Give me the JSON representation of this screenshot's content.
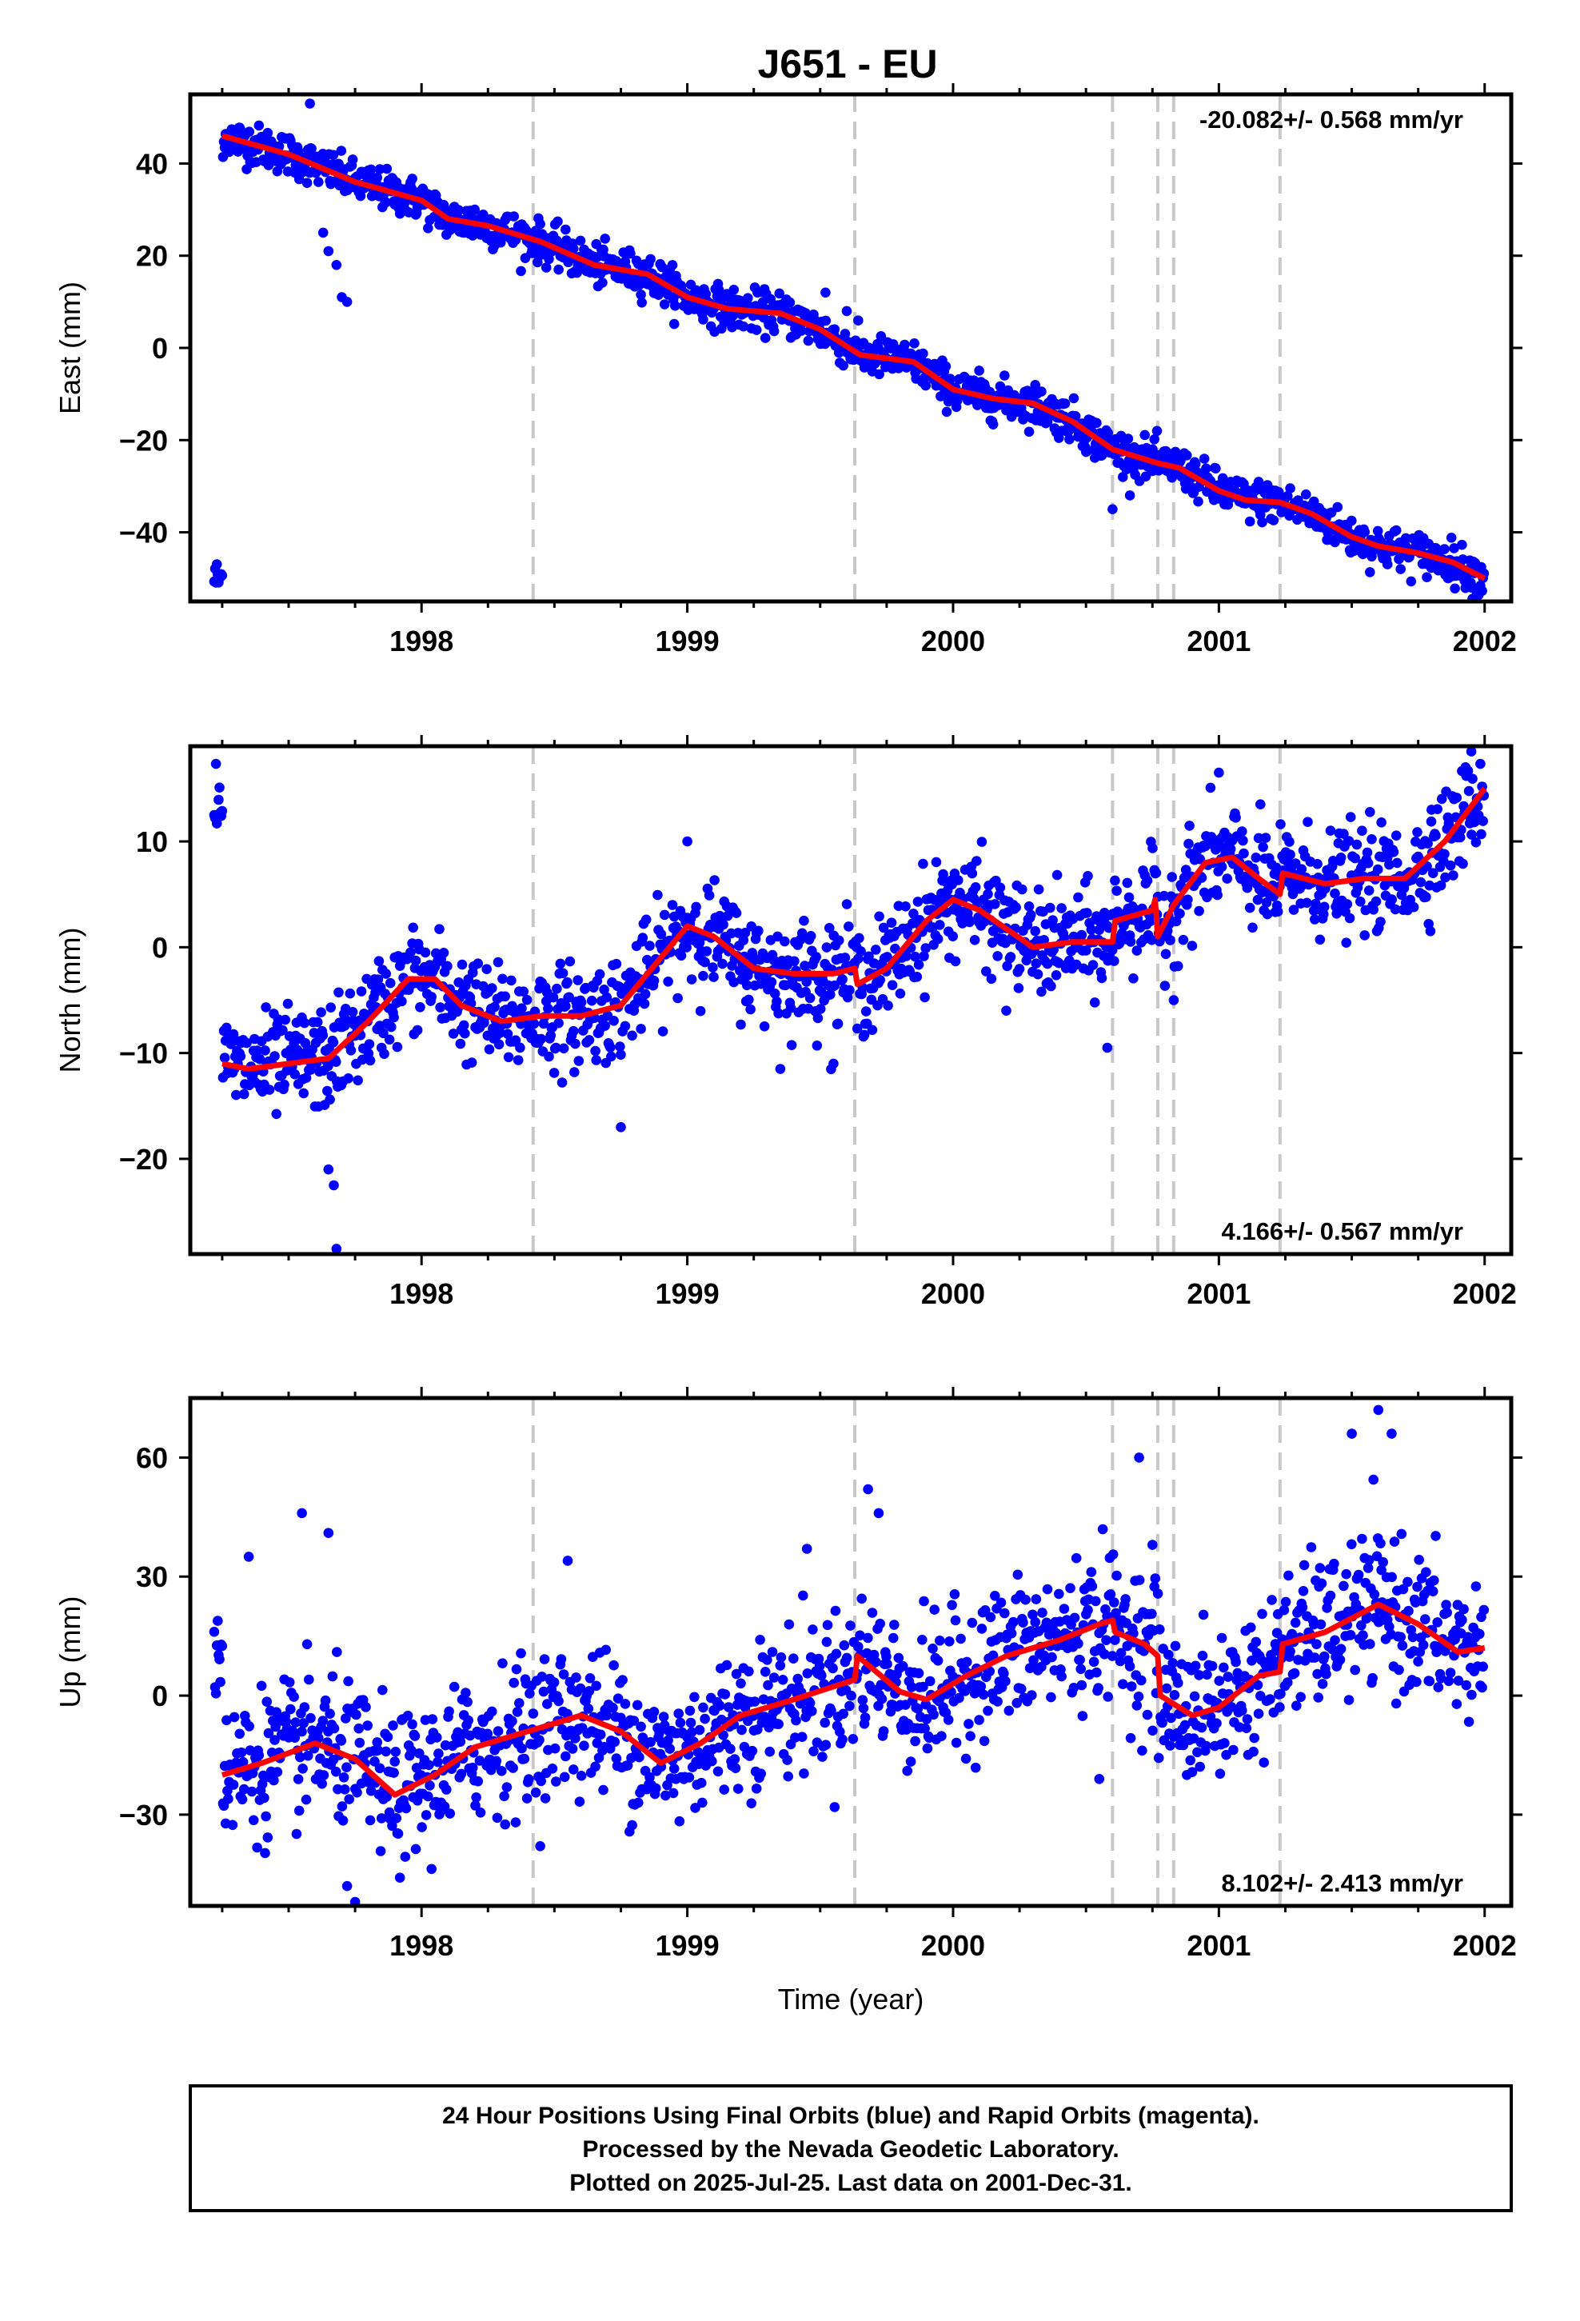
{
  "chart_data": {
    "type": "scatter",
    "title": "J651 - EU",
    "xlabel": "Time (year)",
    "xlim": [
      1997.13,
      2002.1
    ],
    "xticks": [
      1998,
      1999,
      2000,
      2001,
      2002
    ],
    "break_lines": [
      1998.42,
      1999.63,
      2000.6,
      2000.77,
      2000.83,
      2001.23
    ],
    "colors": {
      "points": "#0000ff",
      "model": "#ff0000",
      "breaks": "#c8c8c8",
      "frame": "#000000"
    },
    "panels": [
      {
        "id": "east",
        "ylabel": "East (mm)",
        "ylim": [
          -55,
          55
        ],
        "yticks": [
          -40,
          -20,
          0,
          20,
          40
        ],
        "rate_label": "-20.082+/- 0.568 mm/yr",
        "rate_position": "top-right",
        "model": [
          [
            1997.25,
            46
          ],
          [
            1997.5,
            42
          ],
          [
            1997.75,
            36
          ],
          [
            1998.0,
            32
          ],
          [
            1998.1,
            28
          ],
          [
            1998.25,
            26.5
          ],
          [
            1998.45,
            23
          ],
          [
            1998.65,
            18
          ],
          [
            1998.85,
            16
          ],
          [
            1999.0,
            11
          ],
          [
            1999.15,
            8.5
          ],
          [
            1999.35,
            7.5
          ],
          [
            1999.5,
            4
          ],
          [
            1999.65,
            -1.5
          ],
          [
            1999.85,
            -3
          ],
          [
            2000.0,
            -9
          ],
          [
            2000.15,
            -11
          ],
          [
            2000.3,
            -12
          ],
          [
            2000.45,
            -16
          ],
          [
            2000.6,
            -22
          ],
          [
            2000.77,
            -25
          ],
          [
            2000.85,
            -26
          ],
          [
            2001.0,
            -31
          ],
          [
            2001.1,
            -33
          ],
          [
            2001.23,
            -33.5
          ],
          [
            2001.35,
            -36
          ],
          [
            2001.5,
            -41
          ],
          [
            2001.6,
            -43
          ],
          [
            2001.75,
            -44.5
          ],
          [
            2001.88,
            -46.5
          ],
          [
            2002.0,
            -50
          ]
        ],
        "noise": 2.2,
        "outliers": [
          [
            1997.65,
            21
          ],
          [
            1997.68,
            18
          ],
          [
            1997.7,
            11
          ],
          [
            1997.72,
            10
          ],
          [
            1997.63,
            25
          ],
          [
            1997.58,
            53
          ],
          [
            1998.2,
            30
          ],
          [
            1999.52,
            12
          ],
          [
            1999.6,
            8
          ],
          [
            2000.6,
            -35
          ],
          [
            2001.95,
            -52
          ]
        ]
      },
      {
        "id": "north",
        "ylabel": "North (mm)",
        "ylim": [
          -29,
          19
        ],
        "yticks": [
          -20,
          -10,
          0,
          10
        ],
        "rate_label": "4.166+/- 0.567 mm/yr",
        "rate_position": "bottom-right",
        "model": [
          [
            1997.25,
            -11
          ],
          [
            1997.35,
            -11.5
          ],
          [
            1997.5,
            -11
          ],
          [
            1997.65,
            -10.5
          ],
          [
            1997.8,
            -7
          ],
          [
            1997.95,
            -3
          ],
          [
            1998.05,
            -3
          ],
          [
            1998.15,
            -5.5
          ],
          [
            1998.3,
            -7
          ],
          [
            1998.45,
            -6.5
          ],
          [
            1998.6,
            -6.5
          ],
          [
            1998.75,
            -5.5
          ],
          [
            1998.9,
            -1
          ],
          [
            1999.0,
            2
          ],
          [
            1999.1,
            1
          ],
          [
            1999.25,
            -2
          ],
          [
            1999.4,
            -2.5
          ],
          [
            1999.55,
            -2.5
          ],
          [
            1999.63,
            -2
          ],
          [
            1999.64,
            -3.5
          ],
          [
            1999.75,
            -2
          ],
          [
            1999.9,
            2.5
          ],
          [
            2000.0,
            4.5
          ],
          [
            2000.1,
            3.5
          ],
          [
            2000.3,
            0
          ],
          [
            2000.45,
            0.5
          ],
          [
            2000.6,
            0.5
          ],
          [
            2000.61,
            2.5
          ],
          [
            2000.75,
            3.5
          ],
          [
            2000.76,
            4.5
          ],
          [
            2000.77,
            1
          ],
          [
            2000.83,
            4
          ],
          [
            2000.95,
            8
          ],
          [
            2001.05,
            8.5
          ],
          [
            2001.15,
            6.5
          ],
          [
            2001.23,
            5
          ],
          [
            2001.24,
            7
          ],
          [
            2001.4,
            6
          ],
          [
            2001.55,
            6.5
          ],
          [
            2001.7,
            6.5
          ],
          [
            2001.85,
            10
          ],
          [
            2002.0,
            15
          ]
        ],
        "noise": 2.4,
        "outliers": [
          [
            1997.65,
            -21
          ],
          [
            1997.67,
            -22.5
          ],
          [
            1997.68,
            -28.5
          ],
          [
            1998.75,
            -17
          ],
          [
            1999.35,
            -11.5
          ],
          [
            1999.55,
            -11
          ],
          [
            2000.58,
            -9.5
          ],
          [
            2000.2,
            -6
          ],
          [
            2001.0,
            16.5
          ],
          [
            2001.95,
            18.5
          ],
          [
            2001.8,
            13
          ],
          [
            1999.0,
            10
          ],
          [
            2000.83,
            -5
          ]
        ]
      },
      {
        "id": "up",
        "ylabel": "Up (mm)",
        "ylim": [
          -53,
          75
        ],
        "yticks": [
          -30,
          0,
          30,
          60
        ],
        "rate_label": "8.102+/- 2.413 mm/yr",
        "rate_position": "bottom-right",
        "model": [
          [
            1997.25,
            -20
          ],
          [
            1997.4,
            -17
          ],
          [
            1997.6,
            -12
          ],
          [
            1997.75,
            -16
          ],
          [
            1997.9,
            -25
          ],
          [
            1998.05,
            -20
          ],
          [
            1998.2,
            -13
          ],
          [
            1998.45,
            -8
          ],
          [
            1998.6,
            -5
          ],
          [
            1998.75,
            -9
          ],
          [
            1998.9,
            -17
          ],
          [
            1999.05,
            -12
          ],
          [
            1999.2,
            -5
          ],
          [
            1999.4,
            -1
          ],
          [
            1999.63,
            4
          ],
          [
            1999.64,
            10
          ],
          [
            1999.8,
            1
          ],
          [
            1999.9,
            -1
          ],
          [
            2000.05,
            5
          ],
          [
            2000.2,
            10
          ],
          [
            2000.4,
            14
          ],
          [
            2000.55,
            18
          ],
          [
            2000.6,
            19
          ],
          [
            2000.61,
            16
          ],
          [
            2000.72,
            13
          ],
          [
            2000.77,
            10
          ],
          [
            2000.78,
            0
          ],
          [
            2000.9,
            -5
          ],
          [
            2001.0,
            -3
          ],
          [
            2001.15,
            5
          ],
          [
            2001.23,
            6
          ],
          [
            2001.24,
            13
          ],
          [
            2001.4,
            16
          ],
          [
            2001.6,
            23
          ],
          [
            2001.75,
            18
          ],
          [
            2001.9,
            11
          ],
          [
            2002.0,
            12
          ]
        ],
        "noise": 9,
        "outliers": [
          [
            1997.55,
            46
          ],
          [
            1997.65,
            41
          ],
          [
            1997.72,
            -48
          ],
          [
            1997.75,
            -52
          ],
          [
            1998.55,
            34
          ],
          [
            1999.68,
            52
          ],
          [
            1999.72,
            46
          ],
          [
            2000.7,
            60
          ],
          [
            2000.75,
            38
          ],
          [
            2001.6,
            72
          ],
          [
            2001.65,
            66
          ],
          [
            2001.5,
            66
          ],
          [
            2000.55,
            -21
          ],
          [
            1997.35,
            35
          ],
          [
            1999.45,
            37
          ]
        ]
      }
    ]
  },
  "footer": {
    "line1": "24 Hour Positions Using Final Orbits (blue) and Rapid Orbits (magenta).",
    "line2": "Processed by the Nevada Geodetic Laboratory.",
    "line3": "Plotted on 2025-Jul-25. Last data on 2001-Dec-31."
  }
}
